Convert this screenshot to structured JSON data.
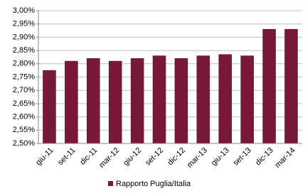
{
  "chart_data": {
    "type": "bar",
    "categories": [
      "giu-11",
      "set-11",
      "dic-11",
      "mar-12",
      "giu-12",
      "set-12",
      "dic-12",
      "mar-13",
      "giu-13",
      "set-13",
      "dic-13",
      "mar-14"
    ],
    "series": [
      {
        "name": "Rapporto Puglia/Italia",
        "color": "#7a1838",
        "values": [
          2.775,
          2.81,
          2.82,
          2.81,
          2.82,
          2.83,
          2.82,
          2.83,
          2.835,
          2.83,
          2.93,
          2.93
        ]
      }
    ],
    "ylim": [
      2.5,
      3.0
    ],
    "yticks": [
      {
        "value": 2.5,
        "label": "2,50%"
      },
      {
        "value": 2.55,
        "label": "2,55%"
      },
      {
        "value": 2.6,
        "label": "2,60%"
      },
      {
        "value": 2.65,
        "label": "2,65%"
      },
      {
        "value": 2.7,
        "label": "2,70%"
      },
      {
        "value": 2.75,
        "label": "2,75%"
      },
      {
        "value": 2.8,
        "label": "2,80%"
      },
      {
        "value": 2.85,
        "label": "2,85%"
      },
      {
        "value": 2.9,
        "label": "2,90%"
      },
      {
        "value": 2.95,
        "label": "2,95%"
      },
      {
        "value": 3.0,
        "label": "3,00%"
      }
    ],
    "grid": true,
    "legend": "bottom"
  }
}
